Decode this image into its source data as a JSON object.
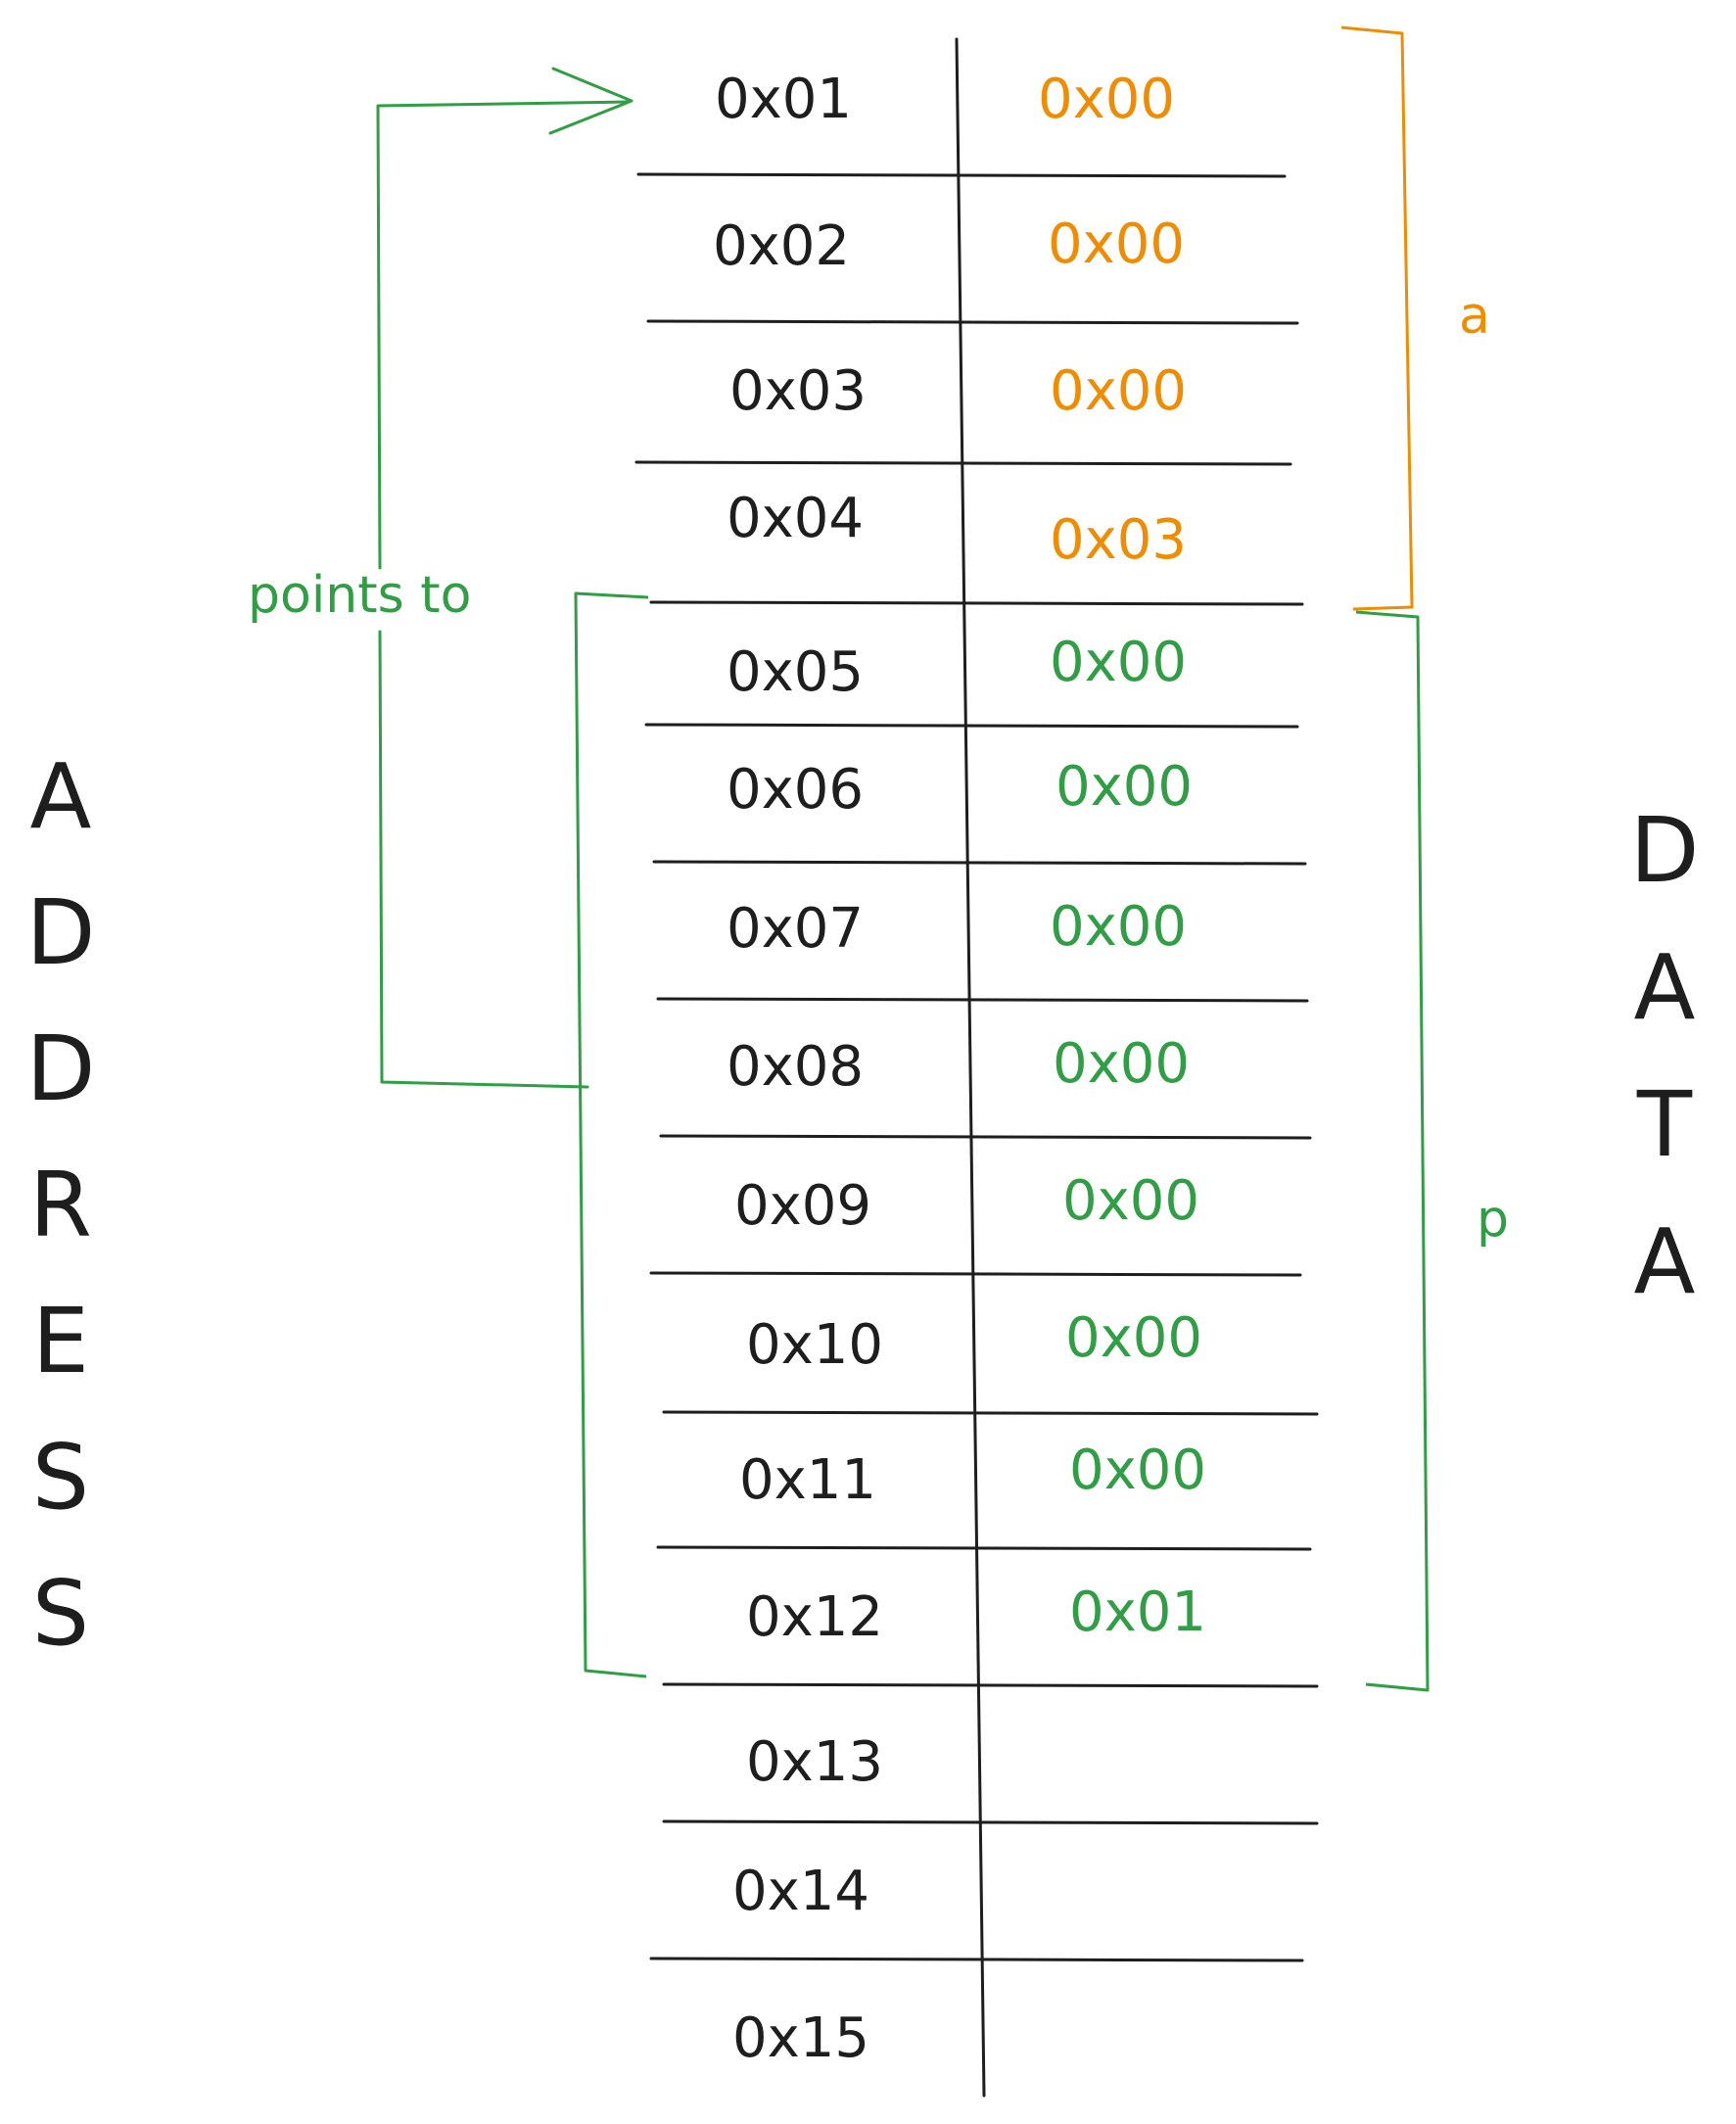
{
  "axis_labels": {
    "left": "ADDRESS",
    "right": "DATA"
  },
  "rows": [
    {
      "address": "0x01",
      "data": "0x00",
      "group": "a"
    },
    {
      "address": "0x02",
      "data": "0x00",
      "group": "a"
    },
    {
      "address": "0x03",
      "data": "0x00",
      "group": "a"
    },
    {
      "address": "0x04",
      "data": "0x03",
      "group": "a"
    },
    {
      "address": "0x05",
      "data": "0x00",
      "group": "p"
    },
    {
      "address": "0x06",
      "data": "0x00",
      "group": "p"
    },
    {
      "address": "0x07",
      "data": "0x00",
      "group": "p"
    },
    {
      "address": "0x08",
      "data": "0x00",
      "group": "p"
    },
    {
      "address": "0x09",
      "data": "0x00",
      "group": "p"
    },
    {
      "address": "0x10",
      "data": "0x00",
      "group": "p"
    },
    {
      "address": "0x11",
      "data": "0x00",
      "group": "p"
    },
    {
      "address": "0x12",
      "data": "0x01",
      "group": "p"
    },
    {
      "address": "0x13",
      "data": "",
      "group": ""
    },
    {
      "address": "0x14",
      "data": "",
      "group": ""
    },
    {
      "address": "0x15",
      "data": "",
      "group": ""
    }
  ],
  "groups": {
    "a": {
      "label": "a",
      "color": "#f08c00"
    },
    "p": {
      "label": "p",
      "color": "#2f9e44"
    }
  },
  "pointer": {
    "label": "points to",
    "color": "#2f9e44"
  },
  "colors": {
    "ink": "#1e1e1e"
  }
}
